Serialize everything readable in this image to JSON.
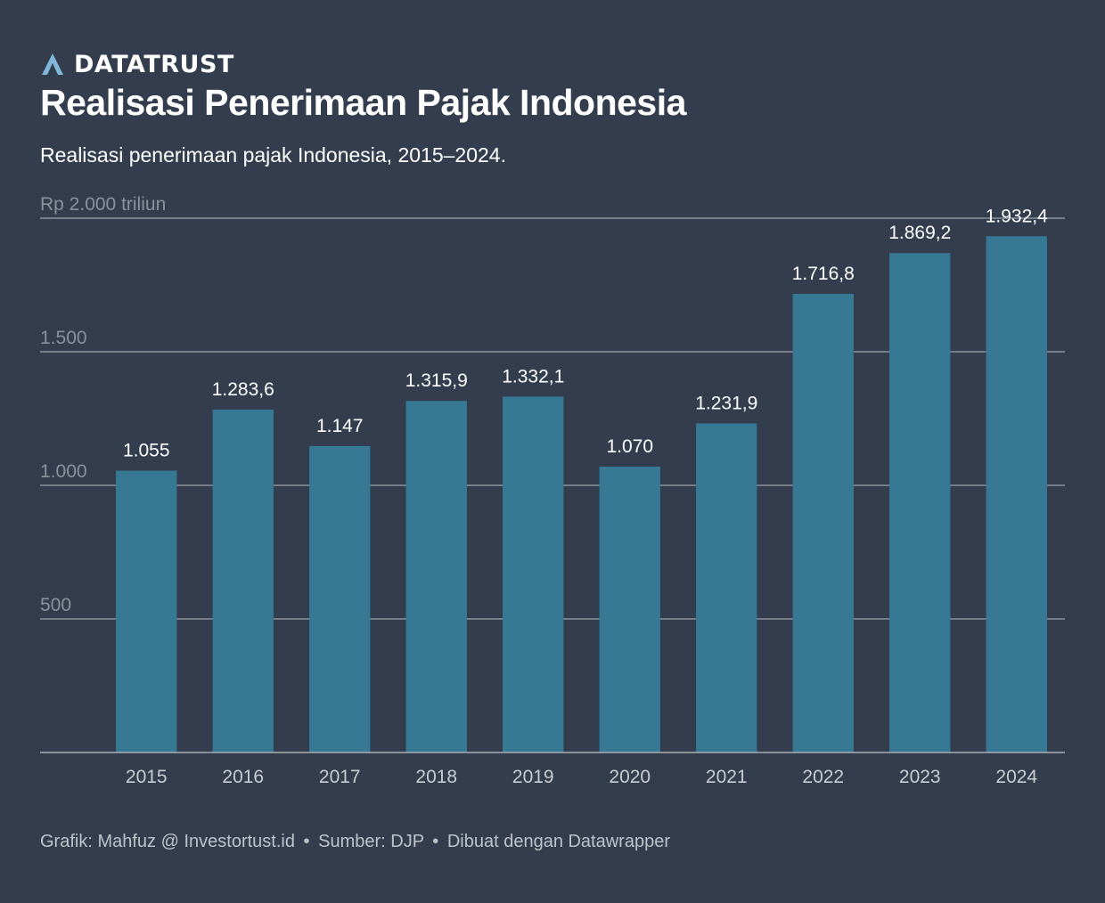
{
  "brand": {
    "name": "DATATRUST",
    "logo_icon": "datatrust-logo-icon",
    "logo_color": "#7fb8da"
  },
  "title": "Realisasi Penerimaan Pajak Indonesia",
  "subtitle": "Realisasi penerimaan pajak Indonesia, 2015–2024.",
  "footer": {
    "credit": "Grafik: Mahfuz @ Investortust.id",
    "separator": "•",
    "source": "Sumber: DJP",
    "tool": "Dibuat dengan Datawrapper"
  },
  "colors": {
    "background": "#333d4e",
    "bar": "#377995",
    "grid": "#8c929b",
    "axis_text": "#c9ccd1"
  },
  "chart_data": {
    "type": "bar",
    "categories": [
      "2015",
      "2016",
      "2017",
      "2018",
      "2019",
      "2020",
      "2021",
      "2022",
      "2023",
      "2024"
    ],
    "values": [
      1055,
      1283.6,
      1147,
      1315.9,
      1332.1,
      1070,
      1231.9,
      1716.8,
      1869.2,
      1932.4
    ],
    "value_labels": [
      "1.055",
      "1.283,6",
      "1.147",
      "1.315,9",
      "1.332,1",
      "1.070",
      "1.231,9",
      "1.716,8",
      "1.869,2",
      "1.932,4"
    ],
    "ylim": [
      0,
      2000
    ],
    "y_ticks": [
      {
        "value": 500,
        "label": "500"
      },
      {
        "value": 1000,
        "label": "1.000"
      },
      {
        "value": 1500,
        "label": "1.500"
      },
      {
        "value": 2000,
        "label": "Rp 2.000 triliun"
      }
    ],
    "grid": true,
    "xlabel": "",
    "ylabel": ""
  }
}
